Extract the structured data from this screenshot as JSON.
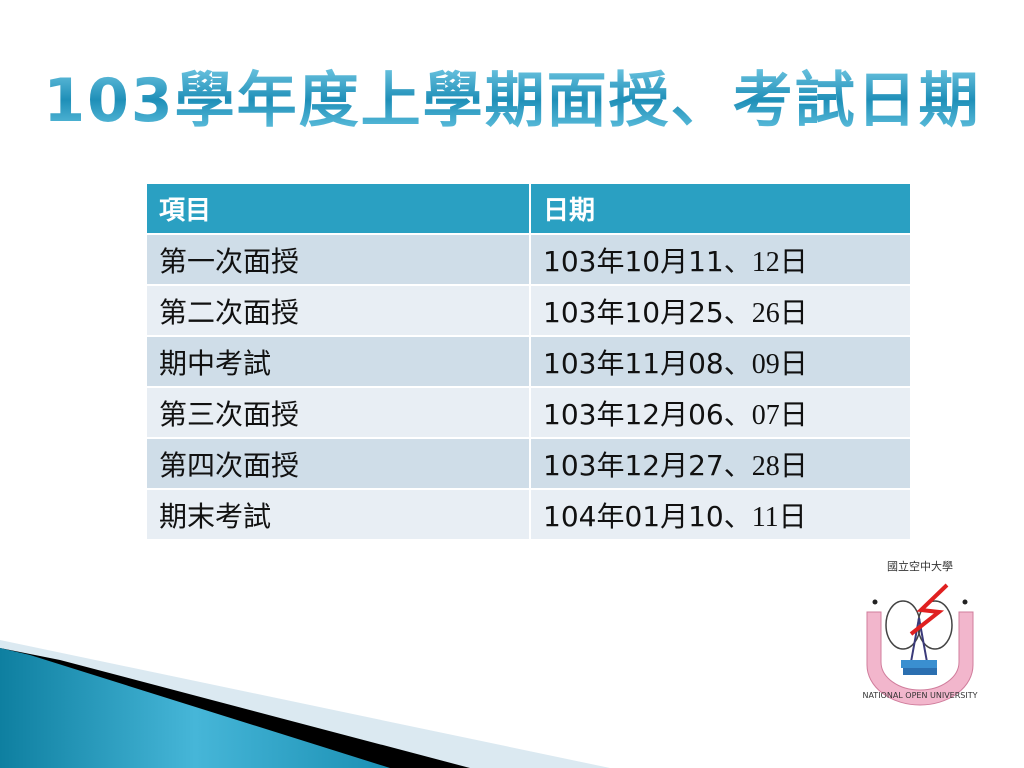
{
  "title": "103學年度上學期面授、考試日期",
  "table": {
    "headers": [
      "項目",
      "日期"
    ],
    "rows": [
      {
        "item": "第一次面授",
        "date_main": "103年10月11",
        "date_sep": "、",
        "date_end": "12日"
      },
      {
        "item": "第二次面授",
        "date_main": "103年10月25",
        "date_sep": "、",
        "date_end": "26日"
      },
      {
        "item": "期中考試",
        "date_main": "103年11月08",
        "date_sep": "、",
        "date_end": "09日"
      },
      {
        "item": "第三次面授",
        "date_main": "103年12月06",
        "date_sep": "、",
        "date_end": "07日"
      },
      {
        "item": "第四次面授",
        "date_main": "103年12月27",
        "date_sep": "、",
        "date_end": "28日"
      },
      {
        "item": "期末考試",
        "date_main": "104年01月10",
        "date_sep": "、",
        "date_end": "11日"
      }
    ]
  },
  "logo": {
    "text_top": "國立空中大學",
    "text_bottom": "NATIONAL OPEN UNIVERSITY"
  },
  "colors": {
    "accent": "#2aa0c2",
    "row_dark": "#cfdde8",
    "row_light": "#e8eef4"
  }
}
